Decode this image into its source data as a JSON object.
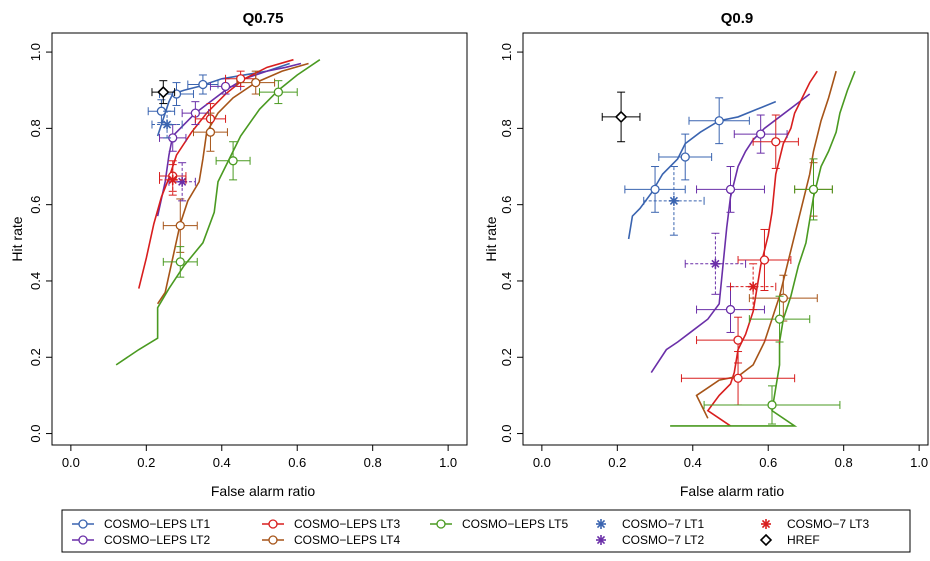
{
  "chart_data": [
    {
      "type": "line",
      "title": "Q0.75",
      "xlabel": "False alarm ratio",
      "ylabel": "Hit rate",
      "xlim": [
        0,
        1
      ],
      "ylim": [
        0,
        1
      ],
      "xticks": [
        "0.0",
        "0.2",
        "0.4",
        "0.6",
        "0.8",
        "1.0"
      ],
      "yticks": [
        "0.0",
        "0.2",
        "0.4",
        "0.6",
        "0.8",
        "1.0"
      ],
      "series": [
        {
          "name": "COSMO−LEPS LT1",
          "color": "#3a64b0",
          "x": [
            0.23,
            0.24,
            0.25,
            0.26,
            0.27,
            0.3,
            0.34,
            0.4,
            0.46,
            0.52,
            0.58
          ],
          "y": [
            0.78,
            0.81,
            0.84,
            0.87,
            0.89,
            0.9,
            0.91,
            0.93,
            0.94,
            0.95,
            0.97
          ],
          "markers": [
            {
              "x": 0.24,
              "y": 0.845,
              "xerr": 0.035,
              "yerr": 0.03
            },
            {
              "x": 0.28,
              "y": 0.89,
              "xerr": 0.045,
              "yerr": 0.03
            },
            {
              "x": 0.35,
              "y": 0.915,
              "xerr": 0.04,
              "yerr": 0.025
            }
          ]
        },
        {
          "name": "COSMO−LEPS LT2",
          "color": "#6a2fa8",
          "x": [
            0.23,
            0.25,
            0.26,
            0.27,
            0.3,
            0.33,
            0.37,
            0.41,
            0.46,
            0.52,
            0.57,
            0.61
          ],
          "y": [
            0.57,
            0.66,
            0.73,
            0.78,
            0.81,
            0.84,
            0.87,
            0.9,
            0.93,
            0.95,
            0.96,
            0.97
          ],
          "markers": [
            {
              "x": 0.27,
              "y": 0.775,
              "xerr": 0.035,
              "yerr": 0.035
            },
            {
              "x": 0.33,
              "y": 0.84,
              "xerr": 0.035,
              "yerr": 0.03
            },
            {
              "x": 0.41,
              "y": 0.91,
              "xerr": 0.04,
              "yerr": 0.02
            }
          ]
        },
        {
          "name": "COSMO−LEPS LT3",
          "color": "#d81e1e",
          "x": [
            0.18,
            0.2,
            0.22,
            0.24,
            0.26,
            0.28,
            0.32,
            0.36,
            0.41,
            0.46,
            0.52,
            0.59
          ],
          "y": [
            0.38,
            0.46,
            0.55,
            0.62,
            0.67,
            0.73,
            0.79,
            0.84,
            0.89,
            0.93,
            0.96,
            0.98
          ],
          "markers": [
            {
              "x": 0.27,
              "y": 0.675,
              "xerr": 0.035,
              "yerr": 0.04
            },
            {
              "x": 0.37,
              "y": 0.825,
              "xerr": 0.04,
              "yerr": 0.04
            },
            {
              "x": 0.45,
              "y": 0.93,
              "xerr": 0.04,
              "yerr": 0.02
            }
          ]
        },
        {
          "name": "COSMO−LEPS LT4",
          "color": "#a65418",
          "x": [
            0.23,
            0.25,
            0.27,
            0.29,
            0.31,
            0.34,
            0.35,
            0.36,
            0.39,
            0.43,
            0.49,
            0.56,
            0.63
          ],
          "y": [
            0.34,
            0.37,
            0.46,
            0.55,
            0.61,
            0.66,
            0.72,
            0.79,
            0.84,
            0.88,
            0.92,
            0.95,
            0.97
          ],
          "markers": [
            {
              "x": 0.29,
              "y": 0.545,
              "xerr": 0.045,
              "yerr": 0.07
            },
            {
              "x": 0.37,
              "y": 0.79,
              "xerr": 0.045,
              "yerr": 0.05
            },
            {
              "x": 0.49,
              "y": 0.92,
              "xerr": 0.05,
              "yerr": 0.03
            }
          ]
        },
        {
          "name": "COSMO−LEPS LT5",
          "color": "#4a9a21",
          "x": [
            0.12,
            0.18,
            0.23,
            0.23,
            0.26,
            0.3,
            0.35,
            0.38,
            0.39,
            0.42,
            0.45,
            0.5,
            0.55,
            0.6,
            0.66
          ],
          "y": [
            0.18,
            0.22,
            0.25,
            0.33,
            0.38,
            0.44,
            0.5,
            0.58,
            0.66,
            0.72,
            0.78,
            0.85,
            0.9,
            0.94,
            0.98
          ],
          "markers": [
            {
              "x": 0.29,
              "y": 0.45,
              "xerr": 0.045,
              "yerr": 0.04
            },
            {
              "x": 0.43,
              "y": 0.715,
              "xerr": 0.045,
              "yerr": 0.05
            },
            {
              "x": 0.55,
              "y": 0.895,
              "xerr": 0.05,
              "yerr": 0.03
            }
          ]
        }
      ],
      "points": [
        {
          "name": "COSMO−7 LT1",
          "color": "#3a64b0",
          "marker": "star",
          "x": 0.255,
          "y": 0.81,
          "xerr": 0.04,
          "yerr": 0.035
        },
        {
          "name": "COSMO−7 LT2",
          "color": "#6a2fa8",
          "marker": "star",
          "x": 0.295,
          "y": 0.66,
          "xerr": 0.035,
          "yerr": 0.05
        },
        {
          "name": "COSMO−7 LT3",
          "color": "#d81e1e",
          "marker": "star",
          "x": 0.27,
          "y": 0.665,
          "xerr": 0.035,
          "yerr": 0.04
        },
        {
          "name": "HREF",
          "color": "#000000",
          "marker": "diamond",
          "x": 0.245,
          "y": 0.895,
          "xerr": 0.03,
          "yerr": 0.03
        }
      ]
    },
    {
      "type": "line",
      "title": "Q0.9",
      "xlabel": "False alarm ratio",
      "ylabel": "Hit rate",
      "xlim": [
        0,
        1
      ],
      "ylim": [
        0,
        1
      ],
      "xticks": [
        "0.0",
        "0.2",
        "0.4",
        "0.6",
        "0.8",
        "1.0"
      ],
      "yticks": [
        "0.0",
        "0.2",
        "0.4",
        "0.6",
        "0.8",
        "1.0"
      ],
      "series": [
        {
          "name": "COSMO−LEPS LT1",
          "color": "#3a64b0",
          "x": [
            0.23,
            0.24,
            0.26,
            0.29,
            0.32,
            0.36,
            0.38,
            0.42,
            0.47,
            0.52,
            0.57,
            0.62
          ],
          "y": [
            0.51,
            0.57,
            0.59,
            0.63,
            0.68,
            0.72,
            0.76,
            0.79,
            0.82,
            0.83,
            0.85,
            0.87
          ],
          "markers": [
            {
              "x": 0.3,
              "y": 0.64,
              "xerr": 0.08,
              "yerr": 0.06
            },
            {
              "x": 0.38,
              "y": 0.725,
              "xerr": 0.07,
              "yerr": 0.06
            },
            {
              "x": 0.47,
              "y": 0.82,
              "xerr": 0.08,
              "yerr": 0.06
            }
          ]
        },
        {
          "name": "COSMO−LEPS LT2",
          "color": "#6a2fa8",
          "x": [
            0.29,
            0.33,
            0.36,
            0.4,
            0.44,
            0.47,
            0.48,
            0.49,
            0.5,
            0.51,
            0.52,
            0.54,
            0.56,
            0.59,
            0.63,
            0.67,
            0.71
          ],
          "y": [
            0.16,
            0.22,
            0.24,
            0.27,
            0.3,
            0.34,
            0.44,
            0.54,
            0.62,
            0.66,
            0.7,
            0.74,
            0.77,
            0.8,
            0.83,
            0.86,
            0.89
          ],
          "markers": [
            {
              "x": 0.5,
              "y": 0.325,
              "xerr": 0.09,
              "yerr": 0.06
            },
            {
              "x": 0.5,
              "y": 0.64,
              "xerr": 0.09,
              "yerr": 0.06
            },
            {
              "x": 0.58,
              "y": 0.785,
              "xerr": 0.07,
              "yerr": 0.05
            }
          ]
        },
        {
          "name": "COSMO−LEPS LT3",
          "color": "#d81e1e",
          "x": [
            0.5,
            0.44,
            0.47,
            0.5,
            0.51,
            0.52,
            0.54,
            0.56,
            0.57,
            0.58,
            0.59,
            0.6,
            0.61,
            0.62,
            0.64,
            0.66,
            0.67,
            0.69,
            0.71,
            0.73
          ],
          "y": [
            0.02,
            0.06,
            0.1,
            0.13,
            0.16,
            0.22,
            0.26,
            0.32,
            0.38,
            0.44,
            0.48,
            0.52,
            0.58,
            0.68,
            0.76,
            0.8,
            0.84,
            0.88,
            0.92,
            0.95
          ],
          "markers": [
            {
              "x": 0.52,
              "y": 0.145,
              "xerr": 0.15,
              "yerr": 0.07
            },
            {
              "x": 0.52,
              "y": 0.245,
              "xerr": 0.11,
              "yerr": 0.06
            },
            {
              "x": 0.59,
              "y": 0.455,
              "xerr": 0.07,
              "yerr": 0.08
            },
            {
              "x": 0.62,
              "y": 0.765,
              "xerr": 0.06,
              "yerr": 0.07
            }
          ]
        },
        {
          "name": "COSMO−LEPS LT4",
          "color": "#a65418",
          "x": [
            0.44,
            0.41,
            0.44,
            0.47,
            0.52,
            0.56,
            0.59,
            0.61,
            0.62,
            0.63,
            0.64,
            0.65,
            0.66,
            0.67,
            0.68,
            0.69,
            0.7,
            0.71,
            0.72,
            0.74,
            0.76,
            0.78
          ],
          "y": [
            0.04,
            0.1,
            0.12,
            0.14,
            0.15,
            0.18,
            0.24,
            0.3,
            0.33,
            0.36,
            0.4,
            0.44,
            0.48,
            0.52,
            0.56,
            0.6,
            0.64,
            0.68,
            0.74,
            0.82,
            0.88,
            0.95
          ],
          "markers": [
            {
              "x": 0.64,
              "y": 0.355,
              "xerr": 0.09,
              "yerr": 0.06
            },
            {
              "x": 0.72,
              "y": 0.64,
              "xerr": 0.05,
              "yerr": 0.07
            }
          ]
        },
        {
          "name": "COSMO−LEPS LT5",
          "color": "#4a9a21",
          "x": [
            0.34,
            0.67,
            0.61,
            0.62,
            0.63,
            0.63,
            0.64,
            0.66,
            0.68,
            0.7,
            0.71,
            0.72,
            0.73,
            0.74,
            0.76,
            0.78,
            0.79,
            0.81,
            0.83
          ],
          "y": [
            0.02,
            0.02,
            0.06,
            0.12,
            0.18,
            0.24,
            0.3,
            0.36,
            0.44,
            0.5,
            0.56,
            0.62,
            0.66,
            0.7,
            0.74,
            0.79,
            0.84,
            0.9,
            0.95
          ],
          "markers": [
            {
              "x": 0.61,
              "y": 0.075,
              "xerr": 0.18,
              "yerr": 0.05
            },
            {
              "x": 0.63,
              "y": 0.3,
              "xerr": 0.08,
              "yerr": 0.06
            },
            {
              "x": 0.72,
              "y": 0.64,
              "xerr": 0.05,
              "yerr": 0.08
            }
          ]
        }
      ],
      "points": [
        {
          "name": "COSMO−7 LT1",
          "color": "#3a64b0",
          "marker": "star",
          "x": 0.35,
          "y": 0.61,
          "xerr": 0.08,
          "yerr": 0.09
        },
        {
          "name": "COSMO−7 LT2",
          "color": "#6a2fa8",
          "marker": "star",
          "x": 0.46,
          "y": 0.445,
          "xerr": 0.08,
          "yerr": 0.08
        },
        {
          "name": "COSMO−7 LT3",
          "color": "#d81e1e",
          "marker": "star",
          "x": 0.56,
          "y": 0.385,
          "xerr": 0.06,
          "yerr": 0.06
        },
        {
          "name": "HREF",
          "color": "#000000",
          "marker": "diamond",
          "x": 0.21,
          "y": 0.83,
          "xerr": 0.05,
          "yerr": 0.065
        }
      ]
    }
  ],
  "legend": {
    "placement": "bottom",
    "entries": [
      {
        "label": "COSMO−LEPS LT1",
        "color": "#3a64b0",
        "kind": "line-circle"
      },
      {
        "label": "COSMO−LEPS LT2",
        "color": "#6a2fa8",
        "kind": "line-circle"
      },
      {
        "label": "COSMO−LEPS LT3",
        "color": "#d81e1e",
        "kind": "line-circle"
      },
      {
        "label": "COSMO−LEPS LT4",
        "color": "#a65418",
        "kind": "line-circle"
      },
      {
        "label": "COSMO−LEPS LT5",
        "color": "#4a9a21",
        "kind": "line-circle"
      },
      {
        "label": "COSMO−7 LT1",
        "color": "#3a64b0",
        "kind": "star"
      },
      {
        "label": "COSMO−7 LT2",
        "color": "#6a2fa8",
        "kind": "star"
      },
      {
        "label": "COSMO−7 LT3",
        "color": "#d81e1e",
        "kind": "star"
      },
      {
        "label": "HREF",
        "color": "#000000",
        "kind": "diamond"
      }
    ]
  }
}
